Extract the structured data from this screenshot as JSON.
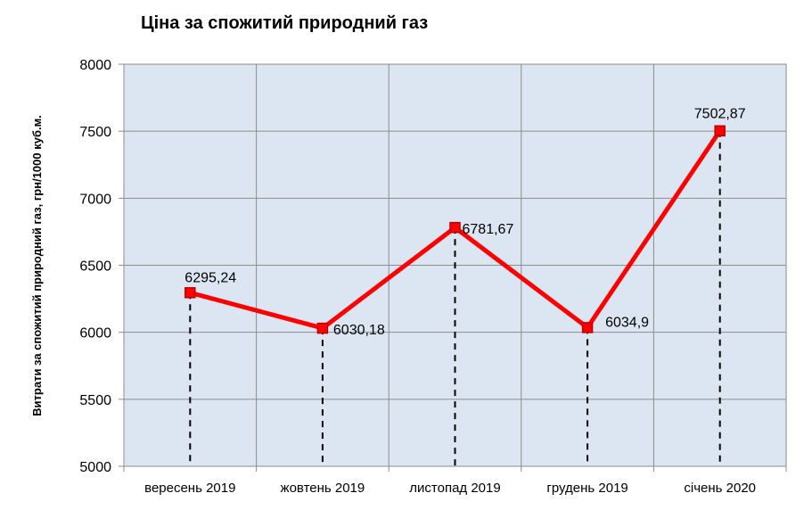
{
  "chart_data": {
    "type": "line",
    "title": "Ціна за спожитий природний газ",
    "xlabel": "",
    "ylabel": "Витрати за спожитий природний газ, грн/1000 куб.м.",
    "categories": [
      "вересень 2019",
      "жовтень 2019",
      "листопад 2019",
      "грудень 2019",
      "січень 2020"
    ],
    "series": [
      {
        "values": [
          6295.24,
          6030.18,
          6781.67,
          6034.9,
          7502.87
        ],
        "data_labels": [
          "6295,24",
          "6030,18",
          "6781,67",
          "6034,9",
          "7502,87"
        ]
      }
    ],
    "ylim": [
      5000,
      8000
    ],
    "yticks": [
      5000,
      5500,
      6000,
      6500,
      7000,
      7500,
      8000
    ],
    "grid": true,
    "drop_lines": true,
    "legend": "none",
    "colors": {
      "line": "#ff0000",
      "marker_fill": "#ff0000",
      "marker_edge": "#c00000",
      "plot_background": "#dce6f2",
      "gridline": "#8c8c8c",
      "drop_line": "#000000"
    }
  }
}
